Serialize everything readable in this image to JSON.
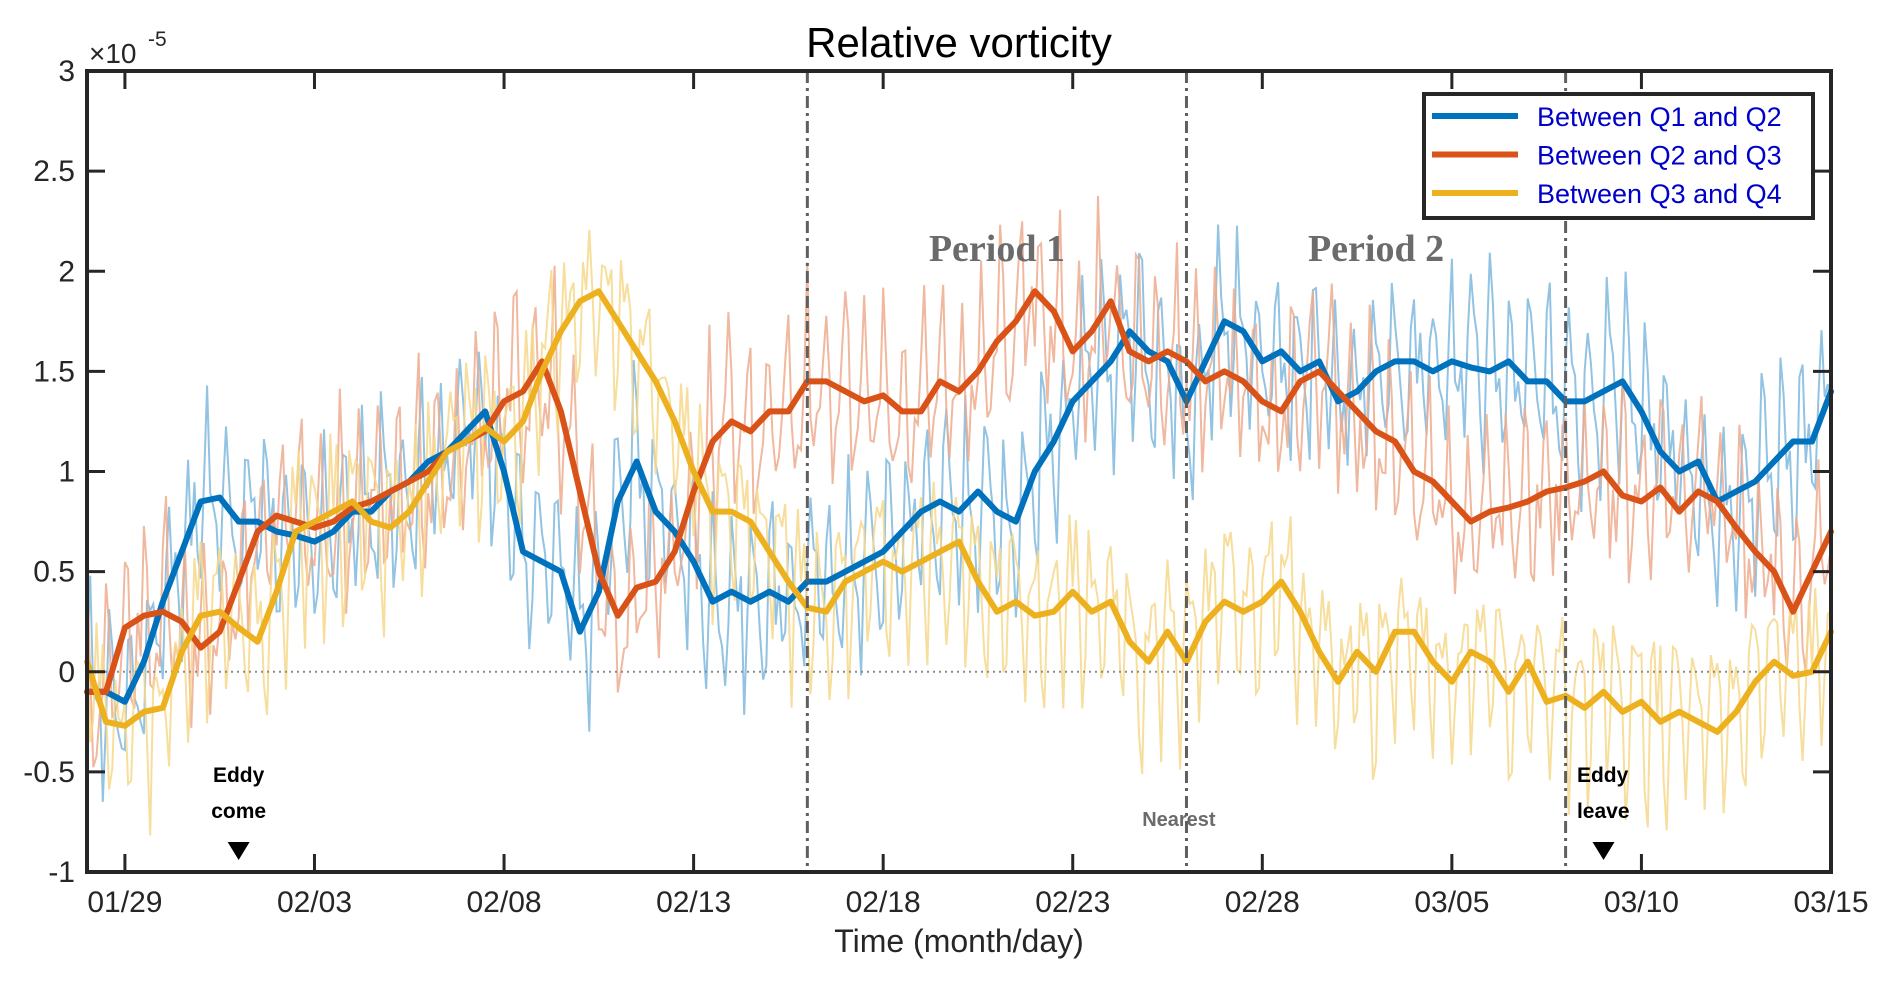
{
  "chart_data": {
    "type": "line",
    "title": "Relative vorticity",
    "xlabel": "Time (month/day)",
    "ylabel": "",
    "y_multiplier_label": "×10",
    "y_multiplier_exponent": "-5",
    "x_unit": "days since 01/28",
    "xlim": [
      0,
      46
    ],
    "ylim": [
      -1,
      3
    ],
    "grid": false,
    "legend_position": "top-right",
    "x_ticks": [
      {
        "day": 1,
        "label": "01/29"
      },
      {
        "day": 6,
        "label": "02/03"
      },
      {
        "day": 11,
        "label": "02/08"
      },
      {
        "day": 16,
        "label": "02/13"
      },
      {
        "day": 21,
        "label": "02/18"
      },
      {
        "day": 26,
        "label": "02/23"
      },
      {
        "day": 31,
        "label": "02/28"
      },
      {
        "day": 36,
        "label": "03/05"
      },
      {
        "day": 41,
        "label": "03/10"
      },
      {
        "day": 46,
        "label": "03/15"
      }
    ],
    "y_ticks": [
      {
        "value": 3,
        "label": "3"
      },
      {
        "value": 2.5,
        "label": "2.5"
      },
      {
        "value": 2,
        "label": "2"
      },
      {
        "value": 1.5,
        "label": "1.5"
      },
      {
        "value": 1,
        "label": "1"
      },
      {
        "value": 0.5,
        "label": "0.5"
      },
      {
        "value": 0,
        "label": "0"
      },
      {
        "value": -0.5,
        "label": "-0.5"
      },
      {
        "value": -1,
        "label": "-1"
      }
    ],
    "zero_line": true,
    "vertical_markers": [
      {
        "day": 19,
        "label": "02/16"
      },
      {
        "day": 29,
        "label": "02/26"
      },
      {
        "day": 39,
        "label": "03/08"
      }
    ],
    "annotations": [
      {
        "text": "Period 1",
        "day": 24,
        "value": 2.05,
        "style": "period"
      },
      {
        "text": "Period 2",
        "day": 34,
        "value": 2.05,
        "style": "period"
      },
      {
        "text": "Nearest",
        "day": 28.8,
        "value": -0.77,
        "style": "nearest"
      },
      {
        "lines": [
          "Eddy",
          "come"
        ],
        "day": 4,
        "value": -0.55,
        "style": "event"
      },
      {
        "lines": [
          "Eddy",
          "leave"
        ],
        "day": 39.3,
        "value": -0.55,
        "style": "event"
      }
    ],
    "event_markers": [
      {
        "day": 4,
        "label": "Eddy come"
      },
      {
        "day": 40,
        "label": "Eddy leave"
      }
    ],
    "series": [
      {
        "name": "Between Q1 and Q2",
        "color": "#0072BD",
        "raw_color": "#7fb8de",
        "x": [
          0,
          0.5,
          1,
          1.5,
          2,
          2.5,
          3,
          3.5,
          4,
          4.5,
          5,
          5.5,
          6,
          6.5,
          7,
          7.5,
          8,
          8.5,
          9,
          9.5,
          10,
          10.5,
          11,
          11.5,
          12,
          12.5,
          13,
          13.5,
          14,
          14.5,
          15,
          15.5,
          16,
          16.5,
          17,
          17.5,
          18,
          18.5,
          19,
          19.5,
          20,
          20.5,
          21,
          21.5,
          22,
          22.5,
          23,
          23.5,
          24,
          24.5,
          25,
          25.5,
          26,
          26.5,
          27,
          27.5,
          28,
          28.5,
          29,
          29.5,
          30,
          30.5,
          31,
          31.5,
          32,
          32.5,
          33,
          33.5,
          34,
          34.5,
          35,
          35.5,
          36,
          36.5,
          37,
          37.5,
          38,
          38.5,
          39,
          39.5,
          40,
          40.5,
          41,
          41.5,
          42,
          42.5,
          43,
          43.5,
          44,
          44.5,
          45,
          45.5,
          46
        ],
        "values": [
          -0.1,
          -0.1,
          -0.15,
          0.05,
          0.35,
          0.6,
          0.85,
          0.87,
          0.75,
          0.75,
          0.7,
          0.68,
          0.65,
          0.7,
          0.8,
          0.8,
          0.9,
          0.95,
          1.05,
          1.1,
          1.2,
          1.3,
          1.0,
          0.6,
          0.55,
          0.5,
          0.2,
          0.4,
          0.85,
          1.05,
          0.8,
          0.7,
          0.55,
          0.35,
          0.4,
          0.35,
          0.4,
          0.35,
          0.45,
          0.45,
          0.5,
          0.55,
          0.6,
          0.7,
          0.8,
          0.85,
          0.8,
          0.9,
          0.8,
          0.75,
          1.0,
          1.15,
          1.35,
          1.45,
          1.55,
          1.7,
          1.6,
          1.55,
          1.35,
          1.55,
          1.75,
          1.7,
          1.55,
          1.6,
          1.5,
          1.55,
          1.35,
          1.4,
          1.5,
          1.55,
          1.55,
          1.5,
          1.55,
          1.52,
          1.5,
          1.55,
          1.45,
          1.45,
          1.35,
          1.35,
          1.4,
          1.45,
          1.3,
          1.1,
          1.0,
          1.05,
          0.85,
          0.9,
          0.95,
          1.05,
          1.15,
          1.15,
          1.4
        ]
      },
      {
        "name": "Between Q2 and Q3",
        "color": "#D95319",
        "raw_color": "#edab8e",
        "x": [
          0,
          0.5,
          1,
          1.5,
          2,
          2.5,
          3,
          3.5,
          4,
          4.5,
          5,
          5.5,
          6,
          6.5,
          7,
          7.5,
          8,
          8.5,
          9,
          9.5,
          10,
          10.5,
          11,
          11.5,
          12,
          12.5,
          13,
          13.5,
          14,
          14.5,
          15,
          15.5,
          16,
          16.5,
          17,
          17.5,
          18,
          18.5,
          19,
          19.5,
          20,
          20.5,
          21,
          21.5,
          22,
          22.5,
          23,
          23.5,
          24,
          24.5,
          25,
          25.5,
          26,
          26.5,
          27,
          27.5,
          28,
          28.5,
          29,
          29.5,
          30,
          30.5,
          31,
          31.5,
          32,
          32.5,
          33,
          33.5,
          34,
          34.5,
          35,
          35.5,
          36,
          36.5,
          37,
          37.5,
          38,
          38.5,
          39,
          39.5,
          40,
          40.5,
          41,
          41.5,
          42,
          42.5,
          43,
          43.5,
          44,
          44.5,
          45,
          45.5,
          46
        ],
        "values": [
          -0.1,
          -0.1,
          0.22,
          0.28,
          0.3,
          0.25,
          0.12,
          0.2,
          0.45,
          0.7,
          0.78,
          0.75,
          0.72,
          0.75,
          0.82,
          0.85,
          0.9,
          0.95,
          1.0,
          1.1,
          1.15,
          1.2,
          1.35,
          1.4,
          1.55,
          1.3,
          0.9,
          0.5,
          0.28,
          0.42,
          0.45,
          0.6,
          0.9,
          1.15,
          1.25,
          1.2,
          1.3,
          1.3,
          1.45,
          1.45,
          1.4,
          1.35,
          1.38,
          1.3,
          1.3,
          1.45,
          1.4,
          1.5,
          1.65,
          1.75,
          1.9,
          1.8,
          1.6,
          1.7,
          1.85,
          1.6,
          1.55,
          1.6,
          1.55,
          1.45,
          1.5,
          1.45,
          1.35,
          1.3,
          1.45,
          1.5,
          1.4,
          1.3,
          1.2,
          1.15,
          1.0,
          0.95,
          0.85,
          0.75,
          0.8,
          0.82,
          0.85,
          0.9,
          0.92,
          0.95,
          1.0,
          0.88,
          0.85,
          0.92,
          0.8,
          0.9,
          0.85,
          0.72,
          0.6,
          0.5,
          0.3,
          0.5,
          0.7
        ]
      },
      {
        "name": "Between Q3 and Q4",
        "color": "#EDB120",
        "raw_color": "#f6d88c",
        "x": [
          0,
          0.5,
          1,
          1.5,
          2,
          2.5,
          3,
          3.5,
          4,
          4.5,
          5,
          5.5,
          6,
          6.5,
          7,
          7.5,
          8,
          8.5,
          9,
          9.5,
          10,
          10.5,
          11,
          11.5,
          12,
          12.5,
          13,
          13.5,
          14,
          14.5,
          15,
          15.5,
          16,
          16.5,
          17,
          17.5,
          18,
          18.5,
          19,
          19.5,
          20,
          20.5,
          21,
          21.5,
          22,
          22.5,
          23,
          23.5,
          24,
          24.5,
          25,
          25.5,
          26,
          26.5,
          27,
          27.5,
          28,
          28.5,
          29,
          29.5,
          30,
          30.5,
          31,
          31.5,
          32,
          32.5,
          33,
          33.5,
          34,
          34.5,
          35,
          35.5,
          36,
          36.5,
          37,
          37.5,
          38,
          38.5,
          39,
          39.5,
          40,
          40.5,
          41,
          41.5,
          42,
          42.5,
          43,
          43.5,
          44,
          44.5,
          45,
          45.5,
          46
        ],
        "values": [
          0.05,
          -0.25,
          -0.27,
          -0.2,
          -0.18,
          0.1,
          0.28,
          0.3,
          0.22,
          0.15,
          0.4,
          0.7,
          0.75,
          0.8,
          0.85,
          0.75,
          0.72,
          0.8,
          0.95,
          1.1,
          1.15,
          1.22,
          1.15,
          1.25,
          1.5,
          1.7,
          1.85,
          1.9,
          1.75,
          1.6,
          1.45,
          1.25,
          1.0,
          0.8,
          0.8,
          0.75,
          0.6,
          0.45,
          0.32,
          0.3,
          0.45,
          0.5,
          0.55,
          0.5,
          0.55,
          0.6,
          0.65,
          0.45,
          0.3,
          0.35,
          0.28,
          0.3,
          0.4,
          0.3,
          0.35,
          0.15,
          0.05,
          0.2,
          0.05,
          0.25,
          0.35,
          0.3,
          0.35,
          0.45,
          0.3,
          0.1,
          -0.05,
          0.1,
          0.0,
          0.2,
          0.2,
          0.05,
          -0.05,
          0.1,
          0.05,
          -0.1,
          0.05,
          -0.15,
          -0.12,
          -0.18,
          -0.1,
          -0.2,
          -0.15,
          -0.25,
          -0.2,
          -0.25,
          -0.3,
          -0.2,
          -0.05,
          0.05,
          -0.02,
          0.0,
          0.2
        ]
      }
    ]
  }
}
